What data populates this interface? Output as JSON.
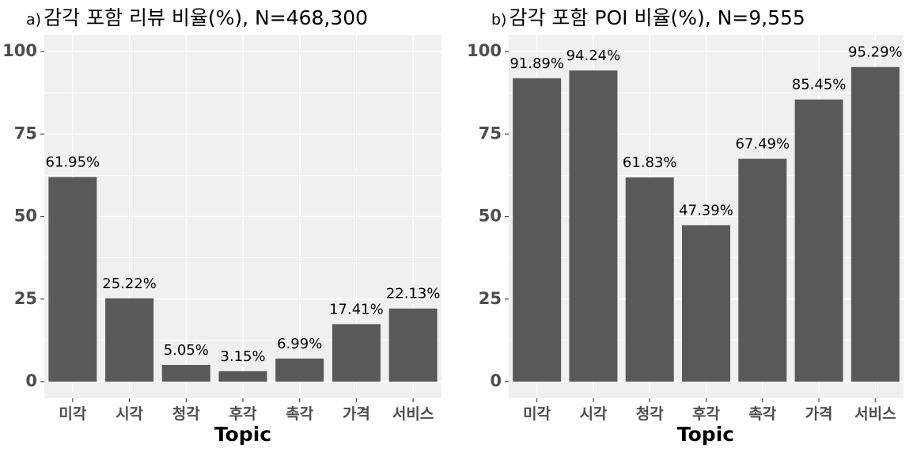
{
  "chart_data": [
    {
      "type": "bar",
      "title_prefix": "a)",
      "title": "감각 포함 리뷰 비율(%), N=468,300",
      "xlabel": "Topic",
      "ylabel": "",
      "categories": [
        "미각",
        "시각",
        "청각",
        "후각",
        "촉각",
        "가격",
        "서비스"
      ],
      "values": [
        61.95,
        25.22,
        5.05,
        3.15,
        6.99,
        17.41,
        22.13
      ],
      "data_labels": [
        "61.95%",
        "25.22%",
        "5.05%",
        "3.15%",
        "6.99%",
        "17.41%",
        "22.13%"
      ],
      "ylim": [
        0,
        100
      ],
      "yticks": [
        0,
        25,
        50,
        75,
        100
      ],
      "grid": true,
      "bar_color": "#595959",
      "panel_color": "#f0f0f0"
    },
    {
      "type": "bar",
      "title_prefix": "b)",
      "title": "감각 포함 POI 비율(%), N=9,555",
      "xlabel": "Topic",
      "ylabel": "",
      "categories": [
        "미각",
        "시각",
        "청각",
        "후각",
        "촉각",
        "가격",
        "서비스"
      ],
      "values": [
        91.89,
        94.24,
        61.83,
        47.39,
        67.49,
        85.45,
        95.29
      ],
      "data_labels": [
        "91.89%",
        "94.24%",
        "61.83%",
        "47.39%",
        "67.49%",
        "85.45%",
        "95.29%"
      ],
      "ylim": [
        0,
        100
      ],
      "yticks": [
        0,
        25,
        50,
        75,
        100
      ],
      "grid": true,
      "bar_color": "#595959",
      "panel_color": "#f0f0f0"
    }
  ]
}
